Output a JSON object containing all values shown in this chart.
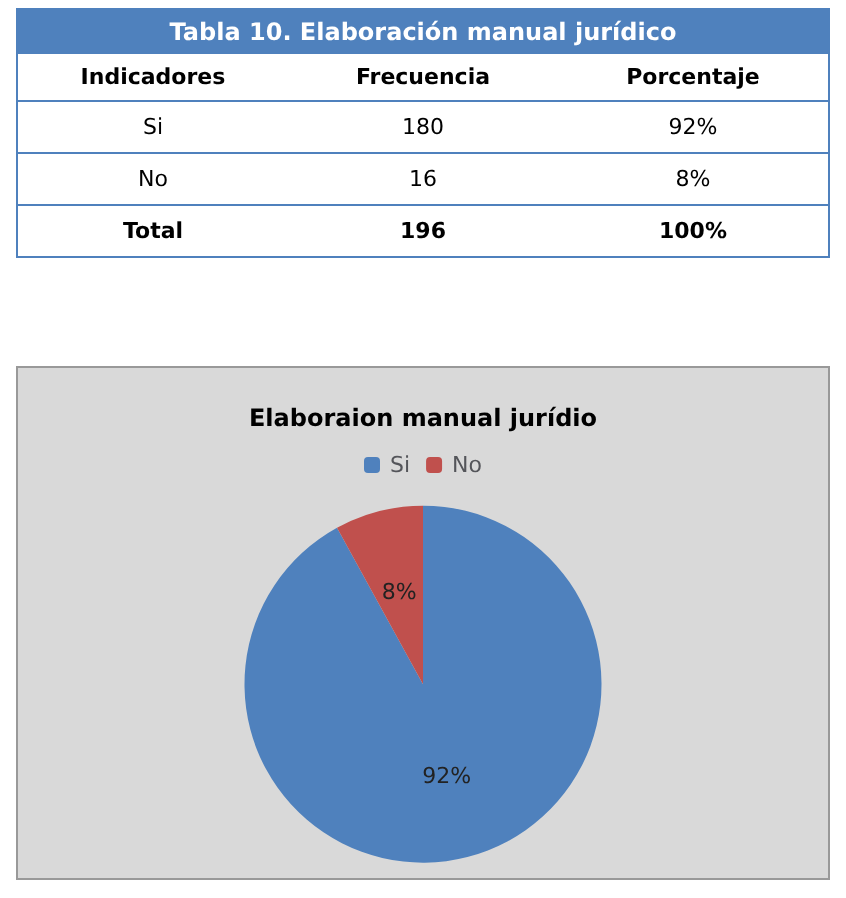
{
  "chart_data": [
    {
      "type": "other",
      "title": "Tabla 10.  Elaboración manual jurídico",
      "categories": [
        "Indicadores",
        "Frecuencia",
        "Porcentaje"
      ],
      "annotations": [
        "Si",
        "180",
        "92%",
        "No",
        "16",
        "8%",
        "Total",
        "196",
        "100%"
      ]
    },
    {
      "type": "pie",
      "title": "Elaboraion manual jurídio",
      "categories": [
        "Si",
        "No"
      ],
      "values": [
        92,
        8
      ],
      "colors": [
        "#4f81bd",
        "#c0504d"
      ],
      "value_labels": [
        "92%",
        "8%"
      ],
      "legend": "top"
    }
  ]
}
